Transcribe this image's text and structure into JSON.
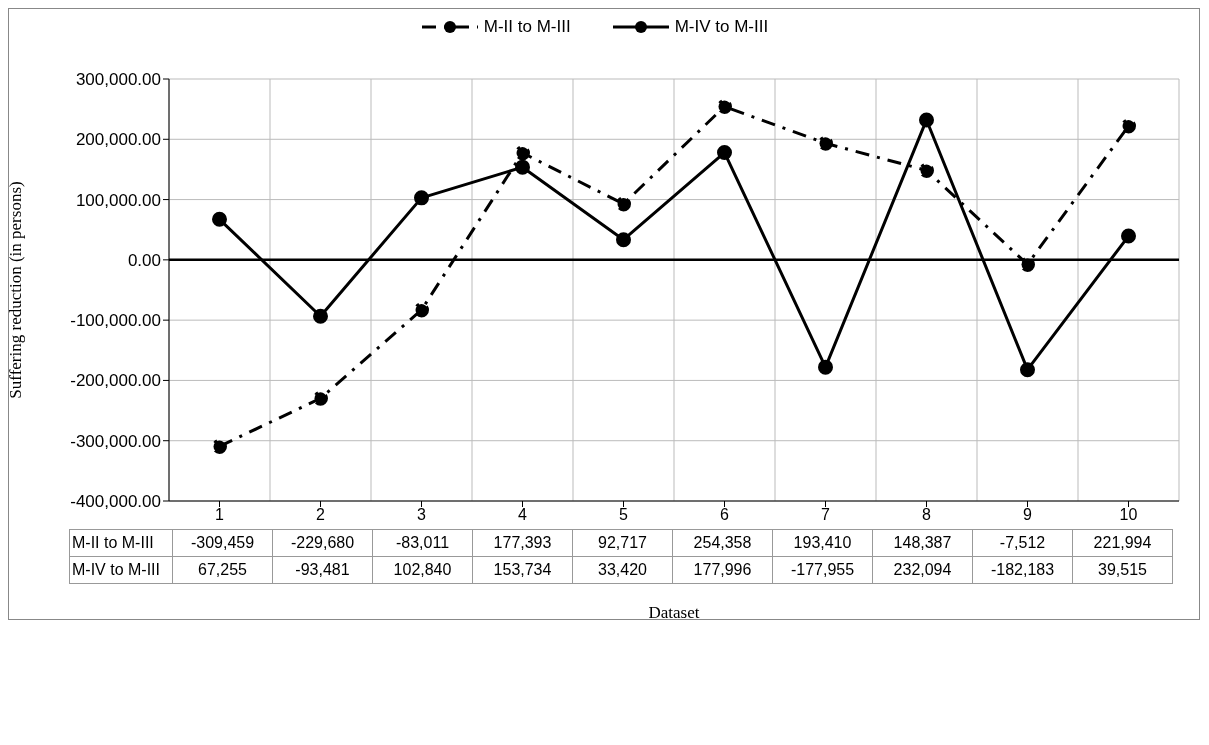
{
  "chart_data": {
    "type": "line",
    "xlabel": "Dataset",
    "ylabel": "Suffering reduction (in persons)",
    "categories": [
      "1",
      "2",
      "3",
      "4",
      "5",
      "6",
      "7",
      "8",
      "9",
      "10"
    ],
    "series": [
      {
        "name": "M-II to M-III",
        "color": "#000000",
        "line_style": "dashed",
        "values": [
          -309459,
          -229680,
          -83011,
          177393,
          92717,
          254358,
          193410,
          148387,
          -7512,
          221994
        ],
        "value_labels": [
          "-309,459",
          "-229,680",
          "-83,011",
          "177,393",
          "92,717",
          "254,358",
          "193,410",
          "148,387",
          "-7,512",
          "221,994"
        ]
      },
      {
        "name": "M-IV to M-III",
        "color": "#000000",
        "line_style": "solid",
        "values": [
          67255,
          -93481,
          102840,
          153734,
          33420,
          177996,
          -177955,
          232094,
          -182183,
          39515
        ],
        "value_labels": [
          "67,255",
          "-93,481",
          "102,840",
          "153,734",
          "33,420",
          "177,996",
          "-177,955",
          "232,094",
          "-182,183",
          "39,515"
        ]
      }
    ],
    "ylim": [
      -400000,
      300000
    ],
    "yticks": [
      {
        "value": -400000,
        "label": "-400,000.00"
      },
      {
        "value": -300000,
        "label": "-300,000.00"
      },
      {
        "value": -200000,
        "label": "-200,000.00"
      },
      {
        "value": -100000,
        "label": "-100,000.00"
      },
      {
        "value": 0,
        "label": "0.00"
      },
      {
        "value": 100000,
        "label": "100,000.00"
      },
      {
        "value": 200000,
        "label": "200,000.00"
      },
      {
        "value": 300000,
        "label": "300,000.00"
      }
    ],
    "ref_lines": [
      {
        "axis": "y",
        "value": 0,
        "color": "#000000"
      }
    ],
    "grid": true,
    "legend": "top",
    "marker": "circle"
  }
}
